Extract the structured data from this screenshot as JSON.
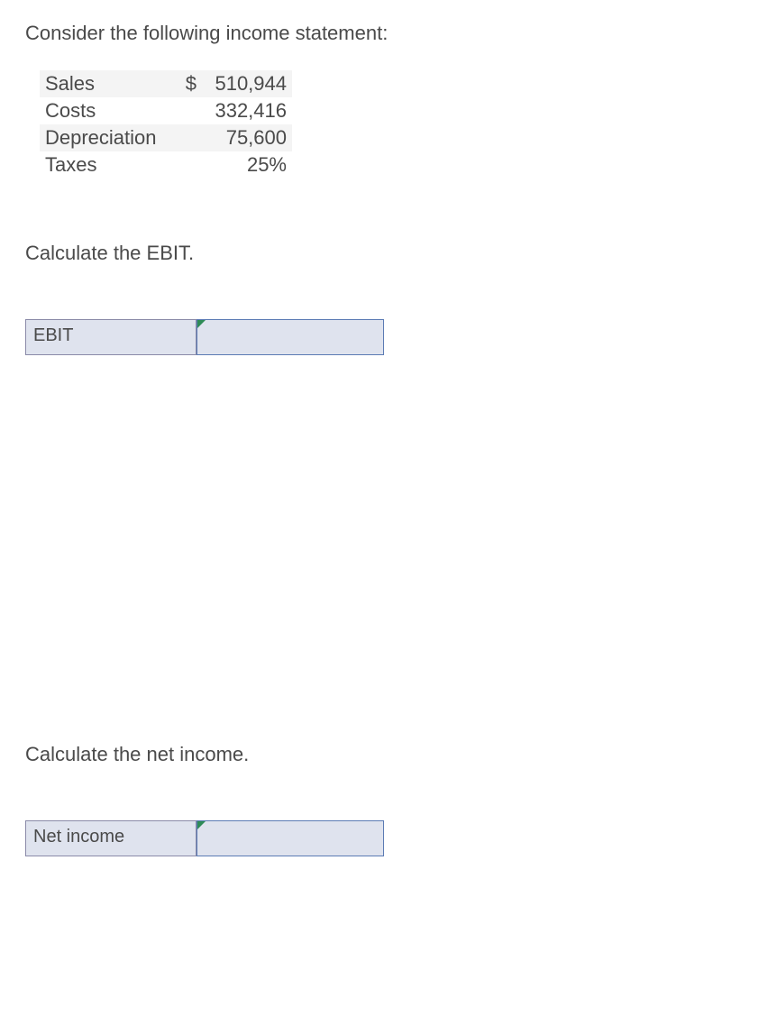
{
  "intro": "Consider the following income statement:",
  "income": {
    "rows": [
      {
        "label": "Sales",
        "currency": "$",
        "value": "510,944"
      },
      {
        "label": "Costs",
        "currency": "",
        "value": "332,416"
      },
      {
        "label": "Depreciation",
        "currency": "",
        "value": "75,600"
      },
      {
        "label": "Taxes",
        "currency": "",
        "value": "25%"
      }
    ]
  },
  "q1": {
    "prompt": "Calculate the EBIT.",
    "label": "EBIT",
    "value": ""
  },
  "q2": {
    "prompt": "Calculate the net income.",
    "label": "Net income",
    "value": ""
  },
  "style": {
    "zebra_bg": "#f4f4f4",
    "cell_bg": "#dfe3ee",
    "cell_border": "#8a8aa8",
    "input_border": "#5b7bb4",
    "flag_color": "#2e8b57",
    "text_color": "#4a4a4a",
    "font_size_body": 22,
    "font_size_cell": 20
  }
}
